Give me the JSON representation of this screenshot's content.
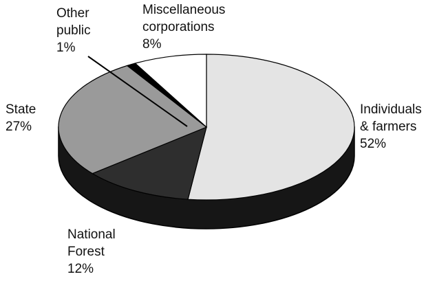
{
  "chart_data": {
    "type": "pie",
    "categories": [
      "Individuals\n& farmers",
      "National\nForest",
      "State",
      "Other\npublic",
      "Miscellaneous\ncorporations"
    ],
    "values": [
      52,
      12,
      27,
      1,
      8
    ],
    "value_labels": [
      "52%",
      "12%",
      "27%",
      "1%",
      "8%"
    ],
    "colors": [
      "#e4e4e4",
      "#2e2e2e",
      "#9a9a9a",
      "#000000",
      "#ffffff"
    ]
  }
}
